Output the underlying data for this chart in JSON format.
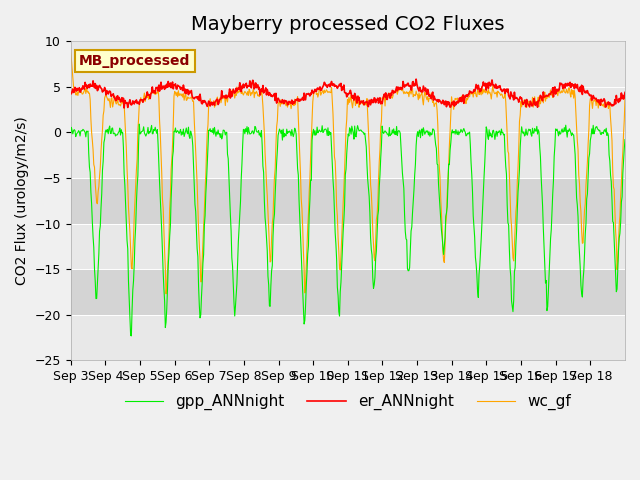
{
  "title": "Mayberry processed CO2 Fluxes",
  "ylabel": "CO2 Flux (urology/m2/s)",
  "xlabel": "",
  "ylim": [
    -25,
    10
  ],
  "yticks": [
    -25,
    -20,
    -15,
    -10,
    -5,
    0,
    5,
    10
  ],
  "xtick_labels": [
    "Sep 3",
    "Sep 4",
    "Sep 5",
    "Sep 6",
    "Sep 7",
    "Sep 8",
    "Sep 9",
    "Sep 10",
    "Sep 11",
    "Sep 12",
    "Sep 13",
    "Sep 14",
    "Sep 15",
    "Sep 16",
    "Sep 17",
    "Sep 18"
  ],
  "legend_label": "MB_processed",
  "legend_box_facecolor": "#ffffcc",
  "legend_box_edgecolor": "#cc9900",
  "legend_text_color": "#8b0000",
  "line_colors": {
    "gpp": "#00ee00",
    "er": "#ff0000",
    "wc": "#ffa500"
  },
  "line_labels": {
    "gpp": "gpp_ANNnight",
    "er": "er_ANNnight",
    "wc": "wc_gf"
  },
  "bg_color": "#f0f0f0",
  "plot_bg_color": "#e8e8e8",
  "n_days": 16,
  "pts_per_day": 48,
  "title_fontsize": 14,
  "axis_fontsize": 10,
  "tick_fontsize": 9,
  "legend_fontsize": 11
}
